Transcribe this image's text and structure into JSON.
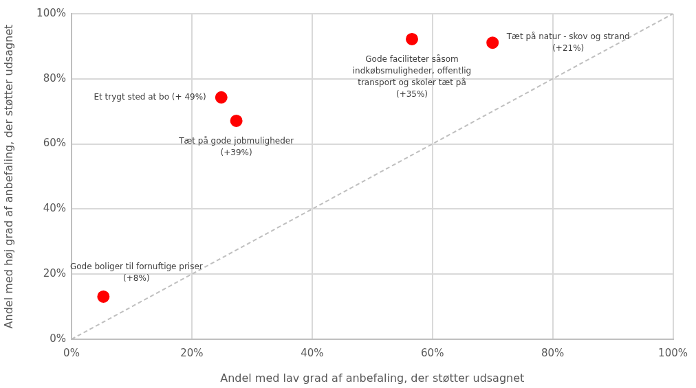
{
  "chart_data": {
    "type": "scatter",
    "xlabel": "Andel med lav grad af anbefaling, der støtter udsagnet",
    "ylabel": "Andel med høj grad af anbefaling, der støtter udsagnet",
    "series": [
      {
        "color": "#ff0000",
        "marker": "circle",
        "x": [
          5.3,
          24.9,
          27.4,
          56.6,
          70.0
        ],
        "values": [
          13.1,
          74.3,
          67.1,
          92.2,
          91.1
        ]
      },
      {
        "type": "line",
        "color": "#bfbfbf",
        "marker": "none",
        "line_style": "dashed",
        "x": [
          0,
          100
        ],
        "values": [
          0,
          100
        ]
      }
    ],
    "xlim": [
      0,
      100
    ],
    "ylim": [
      0,
      100
    ],
    "xticks": [
      {
        "value": 0,
        "label": "0%"
      },
      {
        "value": 20,
        "label": "20%"
      },
      {
        "value": 40,
        "label": "40%"
      },
      {
        "value": 60,
        "label": "60%"
      },
      {
        "value": 80,
        "label": "80%"
      },
      {
        "value": 100,
        "label": "100%"
      }
    ],
    "yticks": [
      {
        "value": 0,
        "label": "0%"
      },
      {
        "value": 20,
        "label": "20%"
      },
      {
        "value": 40,
        "label": "40%"
      },
      {
        "value": 60,
        "label": "60%"
      },
      {
        "value": 80,
        "label": "80%"
      },
      {
        "value": 100,
        "label": "100%"
      }
    ],
    "grid": true,
    "annotations": [
      {
        "text": "Gode boliger til fornuftige priser\n(+8%)",
        "x": 5.3,
        "y": 13.1
      },
      {
        "text": "Et trygt sted at bo (+ 49%)",
        "x": 24.9,
        "y": 74.3
      },
      {
        "text": "Tæt på gode jobmuligheder\n(+39%)",
        "x": 27.4,
        "y": 67.1
      },
      {
        "text": "Gode faciliteter såsom\nindkøbsmuligheder, offentlig\ntransport og skoler tæt på\n(+35%)",
        "x": 56.6,
        "y": 92.2
      },
      {
        "text": "Tæt på natur - skov og strand\n(+21%)",
        "x": 70.0,
        "y": 91.1
      }
    ]
  }
}
